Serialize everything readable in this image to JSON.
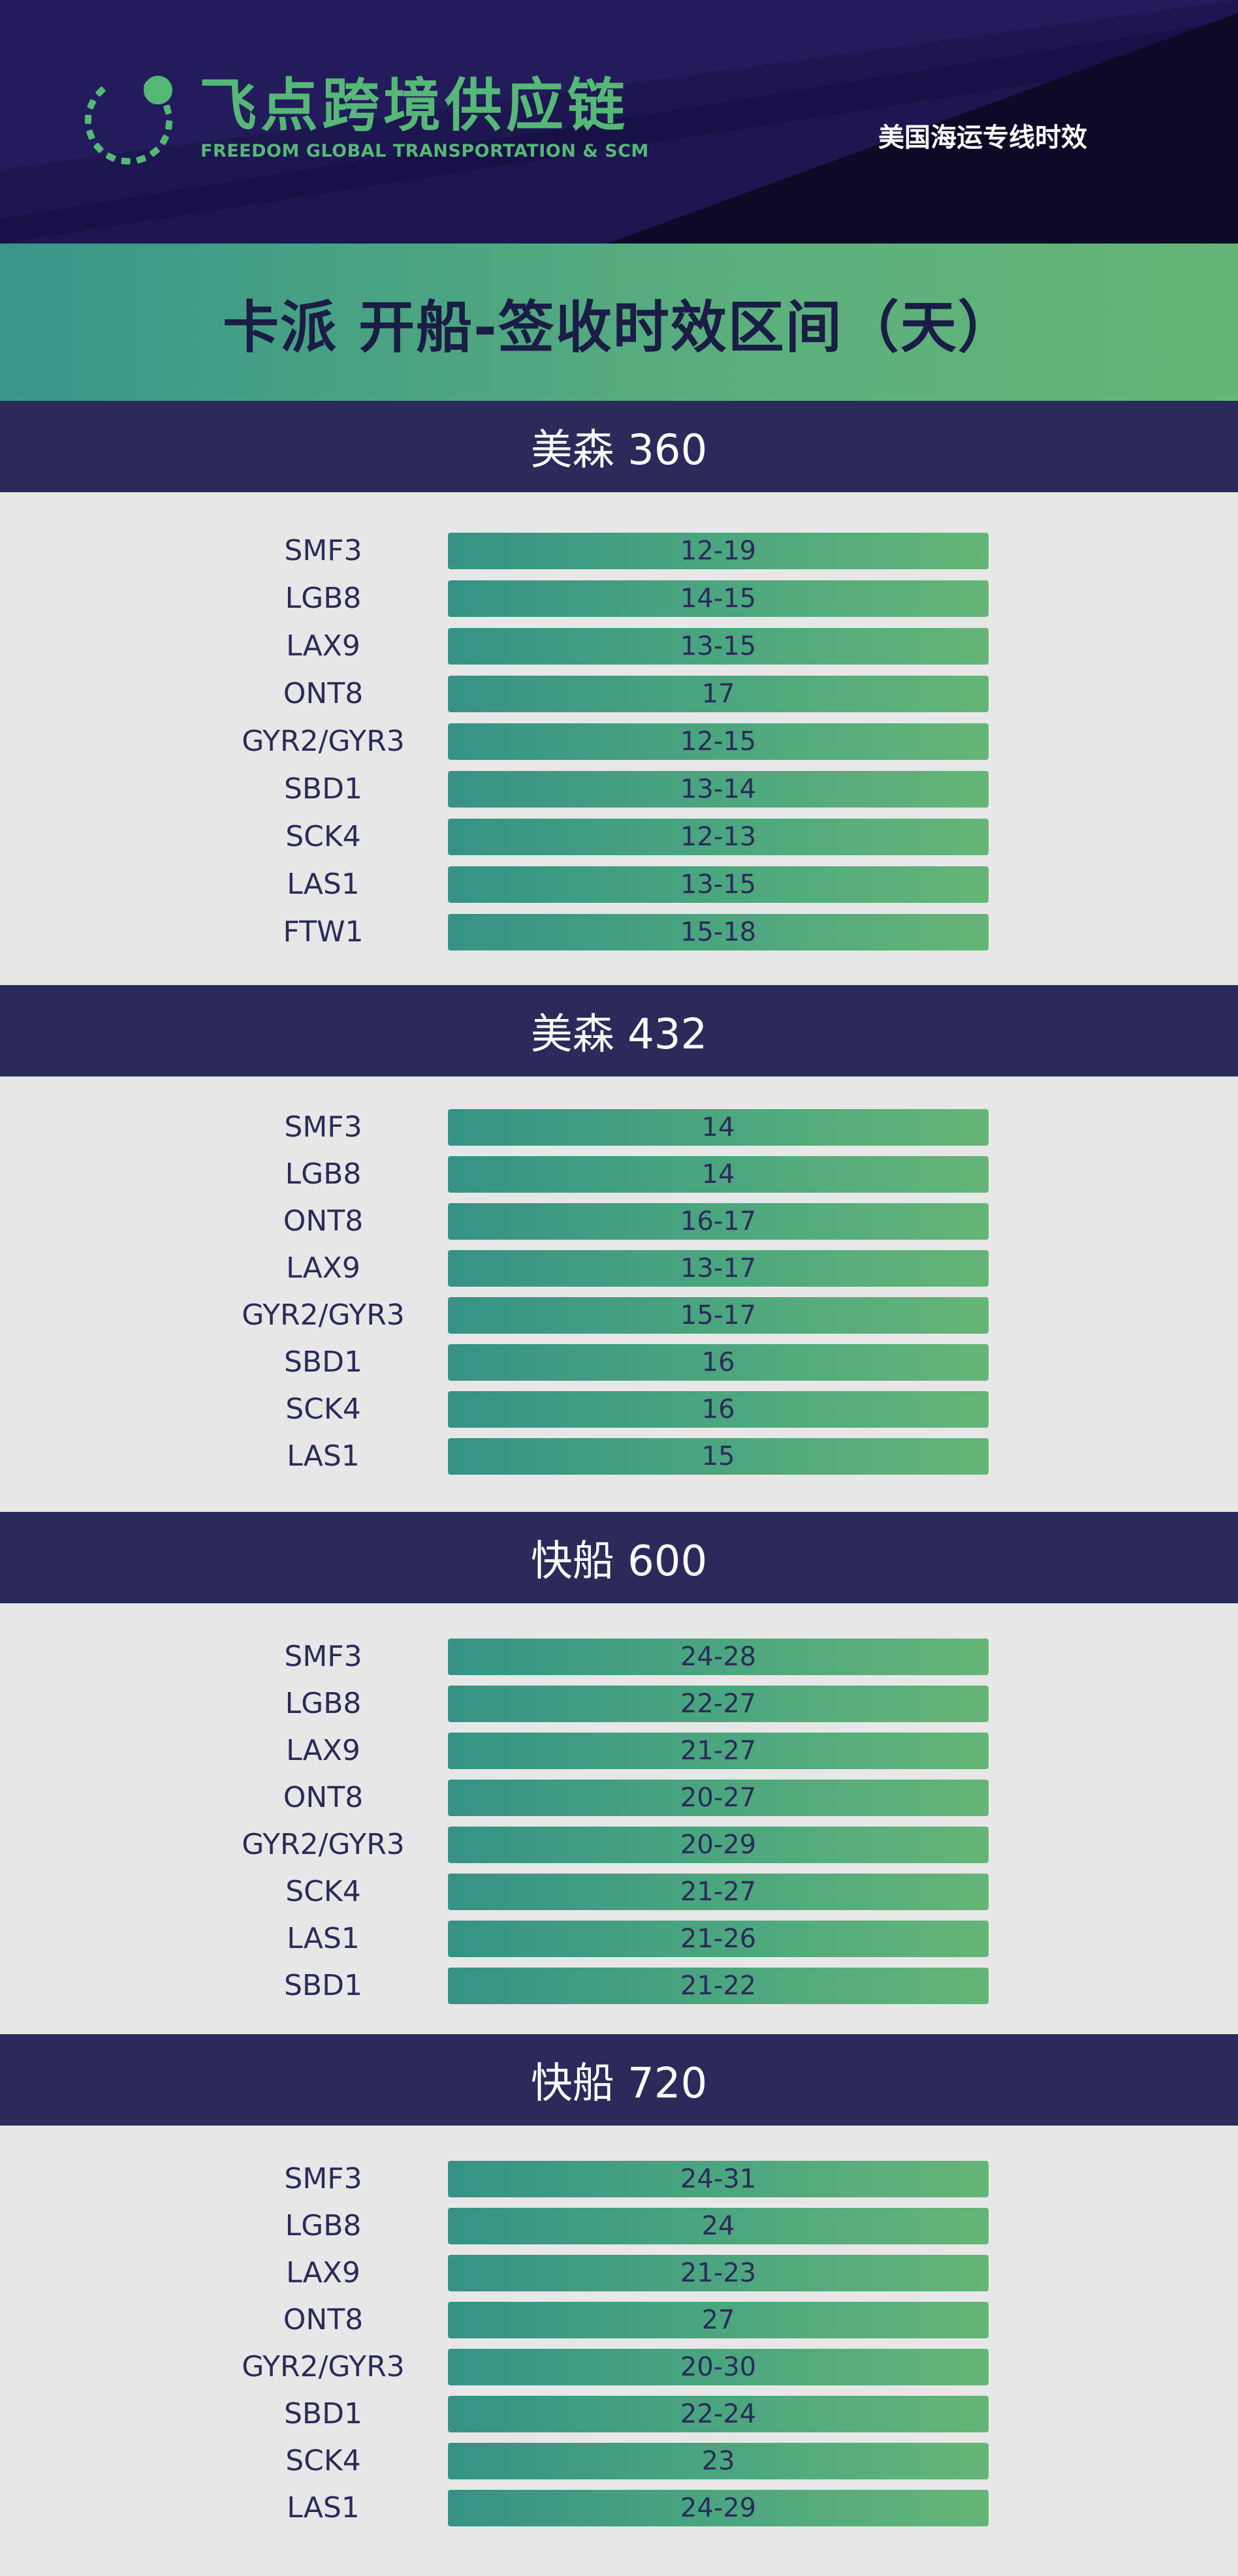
{
  "header": {
    "brand_cn": "飞点跨境供应链",
    "brand_en": "FREEDOM GLOBAL TRANSPORTATION & SCM",
    "logo_icon": "dotted-ring-logo-icon",
    "subtitle": "美国海运专线时效",
    "colors": {
      "brand_green": "#55b877",
      "header_bg": "#1d1650"
    }
  },
  "title": "卡派 开船-签收时效区间（天）",
  "sections": [
    {
      "name": "美森 360",
      "rows": [
        {
          "code": "SMF3",
          "range": "12-19"
        },
        {
          "code": "LGB8",
          "range": "14-15"
        },
        {
          "code": "LAX9",
          "range": "13-15"
        },
        {
          "code": "ONT8",
          "range": "17"
        },
        {
          "code": "GYR2/GYR3",
          "range": "12-15"
        },
        {
          "code": "SBD1",
          "range": "13-14"
        },
        {
          "code": "SCK4",
          "range": "12-13"
        },
        {
          "code": "LAS1",
          "range": "13-15"
        },
        {
          "code": "FTW1",
          "range": "15-18"
        }
      ]
    },
    {
      "name": "美森 432",
      "rows": [
        {
          "code": "SMF3",
          "range": "14"
        },
        {
          "code": "LGB8",
          "range": "14"
        },
        {
          "code": "ONT8",
          "range": "16-17"
        },
        {
          "code": "LAX9",
          "range": "13-17"
        },
        {
          "code": "GYR2/GYR3",
          "range": "15-17"
        },
        {
          "code": "SBD1",
          "range": "16"
        },
        {
          "code": "SCK4",
          "range": "16"
        },
        {
          "code": "LAS1",
          "range": "15"
        }
      ]
    },
    {
      "name": "快船 600",
      "rows": [
        {
          "code": "SMF3",
          "range": "24-28"
        },
        {
          "code": "LGB8",
          "range": "22-27"
        },
        {
          "code": "LAX9",
          "range": "21-27"
        },
        {
          "code": "ONT8",
          "range": "20-27"
        },
        {
          "code": "GYR2/GYR3",
          "range": "20-29"
        },
        {
          "code": "SCK4",
          "range": "21-27"
        },
        {
          "code": "LAS1",
          "range": "21-26"
        },
        {
          "code": "SBD1",
          "range": "21-22"
        }
      ]
    },
    {
      "name": "快船 720",
      "rows": [
        {
          "code": "SMF3",
          "range": "24-31"
        },
        {
          "code": "LGB8",
          "range": "24"
        },
        {
          "code": "LAX9",
          "range": "21-23"
        },
        {
          "code": "ONT8",
          "range": "27"
        },
        {
          "code": "GYR2/GYR3",
          "range": "20-30"
        },
        {
          "code": "SBD1",
          "range": "22-24"
        },
        {
          "code": "SCK4",
          "range": "23"
        },
        {
          "code": "LAS1",
          "range": "24-29"
        }
      ]
    }
  ]
}
